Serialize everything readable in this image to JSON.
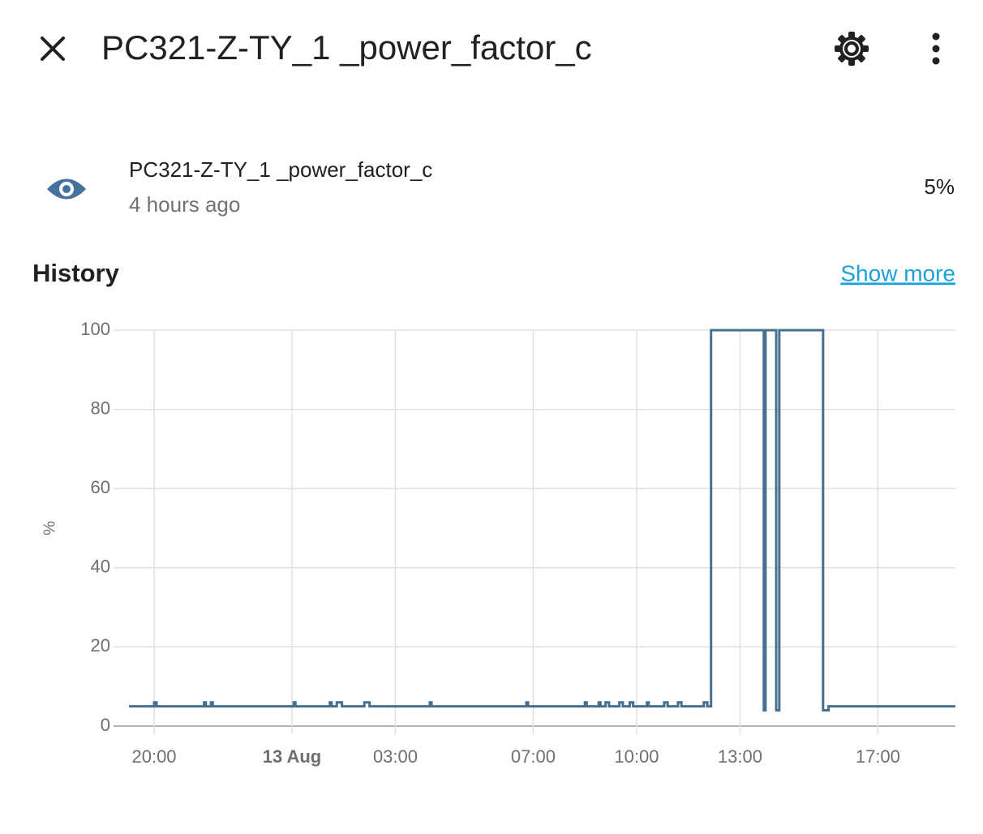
{
  "header": {
    "title": "PC321-Z-TY_1 _power_factor_c"
  },
  "entity": {
    "name": "PC321-Z-TY_1 _power_factor_c",
    "last_changed": "4 hours ago",
    "state": "5%"
  },
  "history": {
    "title": "History",
    "link": "Show more"
  },
  "chart_data": {
    "type": "line",
    "step": true,
    "color": "#46708f",
    "grid": true,
    "y_label": "%",
    "x": [
      -4.73,
      -4.0,
      -3.93,
      -2.55,
      -2.5,
      -2.35,
      -2.3,
      0.05,
      0.1,
      1.1,
      1.15,
      1.3,
      1.45,
      2.1,
      2.25,
      4.0,
      4.05,
      6.8,
      6.85,
      8.5,
      8.55,
      8.9,
      8.95,
      9.1,
      9.2,
      9.5,
      9.6,
      9.8,
      9.9,
      10.3,
      10.35,
      10.8,
      10.9,
      11.2,
      11.3,
      11.95,
      12.05,
      12.16,
      13.69,
      13.74,
      14.05,
      14.14,
      15.41,
      15.57,
      19.25
    ],
    "values": [
      5,
      6,
      5,
      6,
      5,
      6,
      5,
      6,
      5,
      6,
      5,
      6,
      5,
      6,
      5,
      6,
      5,
      6,
      5,
      6,
      5,
      6,
      5,
      6,
      5,
      6,
      5,
      6,
      5,
      6,
      5,
      6,
      5,
      6,
      5,
      6,
      5,
      100,
      4,
      100,
      4,
      100,
      4,
      5,
      5
    ],
    "xlim": [
      -4.73,
      19.25
    ],
    "xticks": [
      {
        "value": -4,
        "label": "20:00"
      },
      {
        "value": 0,
        "label": "13 Aug"
      },
      {
        "value": 3,
        "label": "03:00"
      },
      {
        "value": 7,
        "label": "07:00"
      },
      {
        "value": 10,
        "label": "10:00"
      },
      {
        "value": 13,
        "label": "13:00"
      },
      {
        "value": 17,
        "label": "17:00"
      }
    ],
    "ylim": [
      0,
      100
    ],
    "yticks": [
      0,
      20,
      40,
      60,
      80,
      100
    ]
  }
}
